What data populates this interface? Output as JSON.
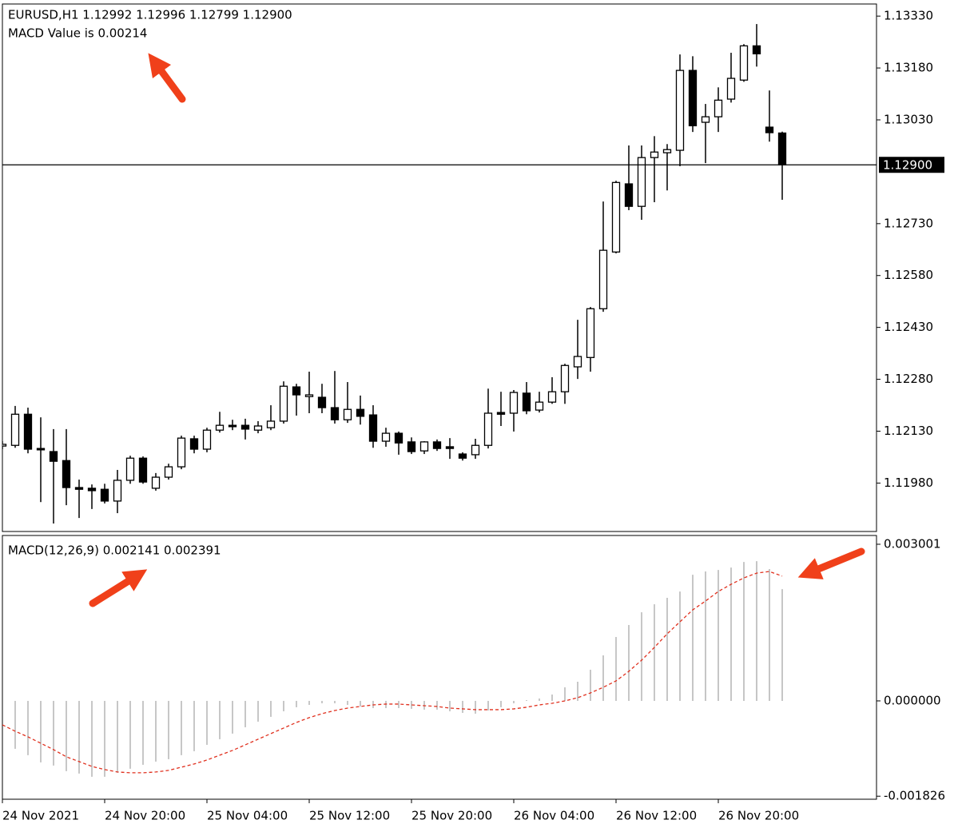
{
  "chart_data": [
    {
      "type": "candlestick",
      "title": "EURUSD,H1  1.12992 1.12996 1.12799 1.12900",
      "annotation": "MACD Value is 0.00214",
      "up_color": "#ffffff",
      "down_color": "#000000",
      "edge_color": "#000000",
      "open": [
        1.12087,
        1.12089,
        1.12179,
        1.1208,
        1.12071,
        1.12045,
        1.11967,
        1.11965,
        1.11962,
        1.11928,
        1.11988,
        1.12052,
        1.11965,
        1.11997,
        1.12027,
        1.12108,
        1.12078,
        1.12133,
        1.12147,
        1.12147,
        1.12133,
        1.1214,
        1.12159,
        1.12258,
        1.1223,
        1.12228,
        1.12198,
        1.12163,
        1.12193,
        1.12177,
        1.12101,
        1.12124,
        1.12099,
        1.12073,
        1.12099,
        1.12085,
        1.12064,
        1.12062,
        1.12089,
        1.12184,
        1.12182,
        1.1224,
        1.12191,
        1.12214,
        1.12244,
        1.12316,
        1.12343,
        1.12484,
        1.12648,
        1.12845,
        1.1278,
        1.12921,
        1.12935,
        1.12942,
        1.13173,
        1.13023,
        1.13039,
        1.1309,
        1.13145,
        1.13244,
        1.13009,
        1.12992
      ],
      "high": [
        1.12101,
        1.12203,
        1.12198,
        1.1217,
        1.12136,
        1.12136,
        1.1199,
        1.11976,
        1.11978,
        1.12018,
        1.12059,
        1.12057,
        1.12009,
        1.12036,
        1.12117,
        1.12117,
        1.1214,
        1.12186,
        1.12163,
        1.12166,
        1.12159,
        1.12205,
        1.12274,
        1.12267,
        1.12302,
        1.12267,
        1.12304,
        1.12272,
        1.12233,
        1.12205,
        1.1214,
        1.12129,
        1.12112,
        1.12101,
        1.12106,
        1.1211,
        1.12069,
        1.12108,
        1.12253,
        1.12244,
        1.12249,
        1.12272,
        1.12244,
        1.12286,
        1.12325,
        1.12452,
        1.12489,
        1.12794,
        1.12854,
        1.12956,
        1.12956,
        1.12983,
        1.1296,
        1.13219,
        1.13214,
        1.13076,
        1.13124,
        1.13224,
        1.13249,
        1.13307,
        1.13115,
        1.12996
      ],
      "low": [
        1.12078,
        1.12082,
        1.12066,
        1.11925,
        1.11863,
        1.11916,
        1.11879,
        1.11905,
        1.11921,
        1.11893,
        1.11978,
        1.11978,
        1.11958,
        1.1199,
        1.1202,
        1.12066,
        1.12069,
        1.12126,
        1.12133,
        1.12106,
        1.12124,
        1.12133,
        1.12152,
        1.12175,
        1.12182,
        1.12182,
        1.12152,
        1.12154,
        1.12149,
        1.12082,
        1.12085,
        1.12062,
        1.12064,
        1.12064,
        1.12073,
        1.1205,
        1.12045,
        1.1205,
        1.1208,
        1.12145,
        1.12129,
        1.12179,
        1.12184,
        1.12209,
        1.12209,
        1.12281,
        1.12302,
        1.12475,
        1.12644,
        1.12769,
        1.12741,
        1.12792,
        1.12826,
        1.12896,
        1.12995,
        1.12905,
        1.12995,
        1.1308,
        1.1314,
        1.13184,
        1.12967,
        1.12799
      ],
      "close": [
        1.12092,
        1.12179,
        1.12078,
        1.12076,
        1.12043,
        1.11967,
        1.11962,
        1.11958,
        1.11928,
        1.11988,
        1.12052,
        1.11983,
        1.11997,
        1.12027,
        1.1211,
        1.12078,
        1.12133,
        1.12147,
        1.12143,
        1.12136,
        1.12145,
        1.12159,
        1.1226,
        1.12235,
        1.12235,
        1.12198,
        1.12163,
        1.12193,
        1.12173,
        1.12101,
        1.12124,
        1.12096,
        1.12071,
        1.12099,
        1.1208,
        1.1208,
        1.12052,
        1.12089,
        1.12182,
        1.12179,
        1.12242,
        1.12189,
        1.12214,
        1.12244,
        1.1232,
        1.12346,
        1.12484,
        1.12653,
        1.12849,
        1.1278,
        1.12921,
        1.12937,
        1.12944,
        1.13173,
        1.13013,
        1.13039,
        1.13087,
        1.1315,
        1.13244,
        1.13221,
        1.12993,
        1.129
      ],
      "ylim": [
        1.1184,
        1.13365
      ],
      "yticks": [
        {
          "value": 1.1333,
          "label": "1.13330"
        },
        {
          "value": 1.1318,
          "label": "1.13180"
        },
        {
          "value": 1.1303,
          "label": "1.13030"
        },
        {
          "value": 1.1273,
          "label": "1.12730"
        },
        {
          "value": 1.1258,
          "label": "1.12580"
        },
        {
          "value": 1.1243,
          "label": "1.12430"
        },
        {
          "value": 1.1228,
          "label": "1.12280"
        },
        {
          "value": 1.1213,
          "label": "1.12130"
        },
        {
          "value": 1.1198,
          "label": "1.11980"
        }
      ],
      "current_price": {
        "value": 1.129,
        "label": "1.12900"
      }
    },
    {
      "type": "macd",
      "title": "MACD(12,26,9) 0.002141 0.002391",
      "categories": [
        "24 Nov 2021",
        null,
        null,
        null,
        null,
        null,
        null,
        null,
        "24 Nov 20:00",
        null,
        null,
        null,
        null,
        null,
        null,
        null,
        "25 Nov 04:00",
        null,
        null,
        null,
        null,
        null,
        null,
        null,
        "25 Nov 12:00",
        null,
        null,
        null,
        null,
        null,
        null,
        null,
        "25 Nov 20:00",
        null,
        null,
        null,
        null,
        null,
        null,
        null,
        "26 Nov 04:00",
        null,
        null,
        null,
        null,
        null,
        null,
        null,
        "26 Nov 12:00",
        null,
        null,
        null,
        null,
        null,
        null,
        null,
        "26 Nov 20:00",
        null,
        null,
        null,
        null,
        null
      ],
      "histogram": {
        "color": "#b4b4b4",
        "values": [
          null,
          -0.000918,
          -0.00104,
          -0.001178,
          -0.001239,
          -0.001346,
          -0.001392,
          -0.001454,
          -0.001454,
          -0.001377,
          -0.0013,
          -0.001224,
          -0.001163,
          -0.001117,
          -0.00104,
          -0.000964,
          -0.000842,
          -0.000734,
          -0.000627,
          -0.000505,
          -0.000398,
          -0.000306,
          -0.000199,
          -0.000122,
          -7.7e-05,
          -4.6e-05,
          -4.6e-05,
          -7.7e-05,
          -0.000107,
          -0.000138,
          -0.000138,
          -0.000138,
          -0.000153,
          -0.000168,
          -0.000168,
          -0.000199,
          -0.00023,
          -0.000245,
          -0.000184,
          -0.000122,
          -4.6e-05,
          1.5e-05,
          4.6e-05,
          0.000122,
          0.00026,
          0.000367,
          0.000597,
          0.000872,
          0.001224,
          0.001454,
          0.001698,
          0.001851,
          0.001974,
          0.002096,
          0.002417,
          0.002479,
          0.002509,
          0.002555,
          0.002662,
          0.002678,
          0.002525,
          0.002141
        ]
      },
      "signal": {
        "color": "#e0301e",
        "values": [
          -0.000459,
          -0.000581,
          -0.000689,
          -0.000811,
          -0.000933,
          -0.001071,
          -0.001163,
          -0.001255,
          -0.001316,
          -0.001362,
          -0.001377,
          -0.001377,
          -0.001362,
          -0.001331,
          -0.00127,
          -0.001209,
          -0.001132,
          -0.00104,
          -0.000949,
          -0.000842,
          -0.000734,
          -0.000627,
          -0.00052,
          -0.000413,
          -0.000321,
          -0.000245,
          -0.000184,
          -0.000138,
          -0.000107,
          -7.7e-05,
          -6.1e-05,
          -6.1e-05,
          -7.7e-05,
          -9.2e-05,
          -0.000107,
          -0.000138,
          -0.000153,
          -0.000168,
          -0.000168,
          -0.000168,
          -0.000153,
          -0.000122,
          -7.7e-05,
          -4.6e-05,
          0,
          6.1e-05,
          0.000153,
          0.00026,
          0.000383,
          0.000566,
          0.00078,
          0.001025,
          0.001285,
          0.001515,
          0.001744,
          0.001913,
          0.002096,
          0.002234,
          0.002356,
          0.002448,
          0.002479,
          0.002391
        ]
      },
      "ylim": [
        -0.001884,
        0.003169
      ],
      "yticks": [
        0.003001,
        {
          "value": 0,
          "label": "0.000000"
        },
        -0.001826
      ]
    }
  ]
}
